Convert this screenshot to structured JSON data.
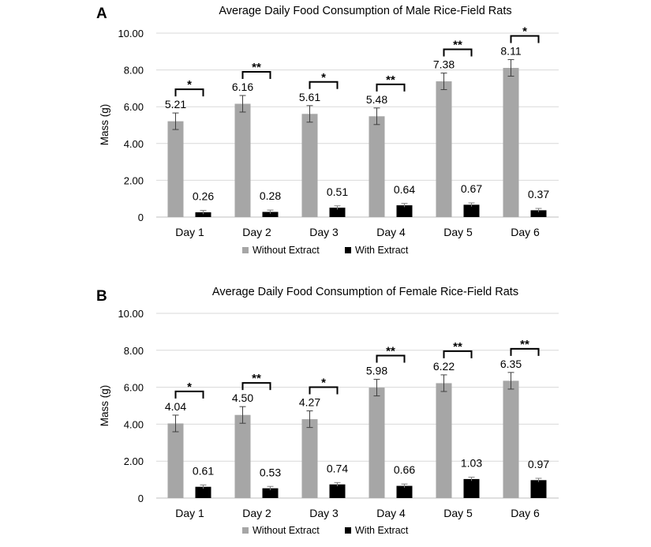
{
  "chart_data": [
    {
      "type": "bar",
      "panel": "A",
      "title": "Average Daily Food Consumption of Male Rice-Field Rats",
      "xlabel": "",
      "ylabel": "Mass (g)",
      "ylim": [
        0,
        10
      ],
      "yticks": [
        "0",
        "2.00",
        "4.00",
        "6.00",
        "8.00",
        "10.00"
      ],
      "grid": true,
      "legend_position": "bottom",
      "categories": [
        "Day 1",
        "Day 2",
        "Day 3",
        "Day 4",
        "Day 5",
        "Day 6"
      ],
      "series": [
        {
          "name": "Without Extract",
          "color": "#a6a6a6",
          "values": [
            5.21,
            6.16,
            5.61,
            5.48,
            7.38,
            8.11
          ],
          "labels": [
            "5.21",
            "6.16",
            "5.61",
            "5.48",
            "7.38",
            "8.11"
          ],
          "errors": [
            0.45,
            0.45,
            0.45,
            0.45,
            0.45,
            0.45
          ]
        },
        {
          "name": "With Extract",
          "color": "#000000",
          "values": [
            0.26,
            0.28,
            0.51,
            0.64,
            0.67,
            0.37
          ],
          "labels": [
            "0.26",
            "0.28",
            "0.51",
            "0.64",
            "0.67",
            "0.37"
          ],
          "errors": [
            0.1,
            0.1,
            0.1,
            0.1,
            0.1,
            0.1
          ]
        }
      ],
      "significance": [
        "*",
        "**",
        "*",
        "**",
        "**",
        "*"
      ]
    },
    {
      "type": "bar",
      "panel": "B",
      "title": "Average Daily Food Consumption of Female Rice-Field Rats",
      "xlabel": "",
      "ylabel": "Mass (g)",
      "ylim": [
        0,
        10
      ],
      "yticks": [
        "0",
        "2.00",
        "4.00",
        "6.00",
        "8.00",
        "10.00"
      ],
      "grid": true,
      "legend_position": "bottom",
      "categories": [
        "Day 1",
        "Day 2",
        "Day 3",
        "Day 4",
        "Day 5",
        "Day 6"
      ],
      "series": [
        {
          "name": "Without Extract",
          "color": "#a6a6a6",
          "values": [
            4.04,
            4.5,
            4.27,
            5.98,
            6.22,
            6.35
          ],
          "labels": [
            "4.04",
            "4.50",
            "4.27",
            "5.98",
            "6.22",
            "6.35"
          ],
          "errors": [
            0.45,
            0.45,
            0.45,
            0.45,
            0.45,
            0.45
          ]
        },
        {
          "name": "With Extract",
          "color": "#000000",
          "values": [
            0.61,
            0.53,
            0.74,
            0.66,
            1.03,
            0.97
          ],
          "labels": [
            "0.61",
            "0.53",
            "0.74",
            "0.66",
            "1.03",
            "0.97"
          ],
          "errors": [
            0.1,
            0.1,
            0.1,
            0.1,
            0.1,
            0.1
          ]
        }
      ],
      "significance": [
        "*",
        "**",
        "*",
        "**",
        "**",
        "**"
      ]
    }
  ]
}
